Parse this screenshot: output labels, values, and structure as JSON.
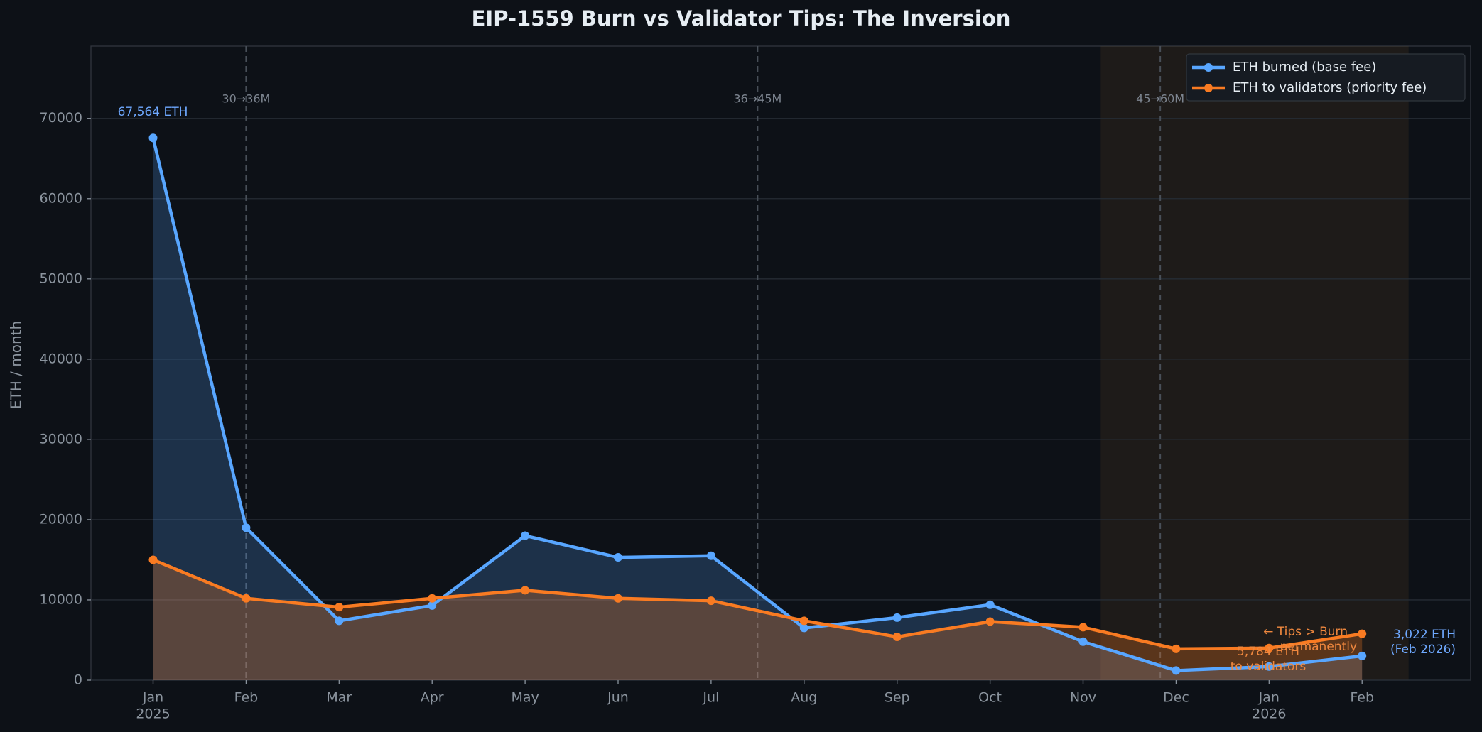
{
  "chart_data": {
    "type": "line",
    "title": "EIP-1559 Burn vs Validator Tips: The Inversion",
    "y_label": "ETH / month",
    "categories": [
      [
        "Jan",
        "2025"
      ],
      [
        "Feb"
      ],
      [
        "Mar"
      ],
      [
        "Apr"
      ],
      [
        "May"
      ],
      [
        "Jun"
      ],
      [
        "Jul"
      ],
      [
        "Aug"
      ],
      [
        "Sep"
      ],
      [
        "Oct"
      ],
      [
        "Nov"
      ],
      [
        "Dec"
      ],
      [
        "Jan",
        "2026"
      ],
      [
        "Feb"
      ]
    ],
    "series": [
      {
        "name": "ETH burned (base fee)",
        "color": "#58a6ff",
        "values": [
          67564,
          19000,
          7400,
          9300,
          18000,
          15300,
          15500,
          6500,
          7800,
          9400,
          4800,
          1200,
          1700,
          3022
        ]
      },
      {
        "name": "ETH to validators (priority fee)",
        "color": "#f97b22",
        "values": [
          15000,
          10200,
          9100,
          10200,
          11200,
          10200,
          9900,
          7400,
          5400,
          7300,
          6600,
          3900,
          4000,
          5784
        ]
      }
    ],
    "ylim": [
      0,
      79000
    ],
    "yticks": [
      0,
      10000,
      20000,
      30000,
      40000,
      50000,
      60000,
      70000
    ],
    "grid": true,
    "legend": "upper right",
    "event_lines": [
      {
        "x": 1,
        "label": "30→36M"
      },
      {
        "x": 6.5,
        "label": "36→45M"
      },
      {
        "x": 10.83,
        "label": "45→60M"
      }
    ],
    "shaded_span": [
      10.19,
      13.5
    ],
    "notes": [
      {
        "text": [
          "67,564 ETH"
        ],
        "color": "#6ea8fe"
      },
      {
        "text": [
          "3,022 ETH",
          "(Feb 2026)"
        ],
        "color": "#6ea8fe"
      },
      {
        "text": [
          "← Tips > Burn",
          "permanently"
        ],
        "color": "#f0883e"
      },
      {
        "text": [
          "5,784 ETH",
          "to validators"
        ],
        "color": "#f0883e"
      }
    ]
  }
}
